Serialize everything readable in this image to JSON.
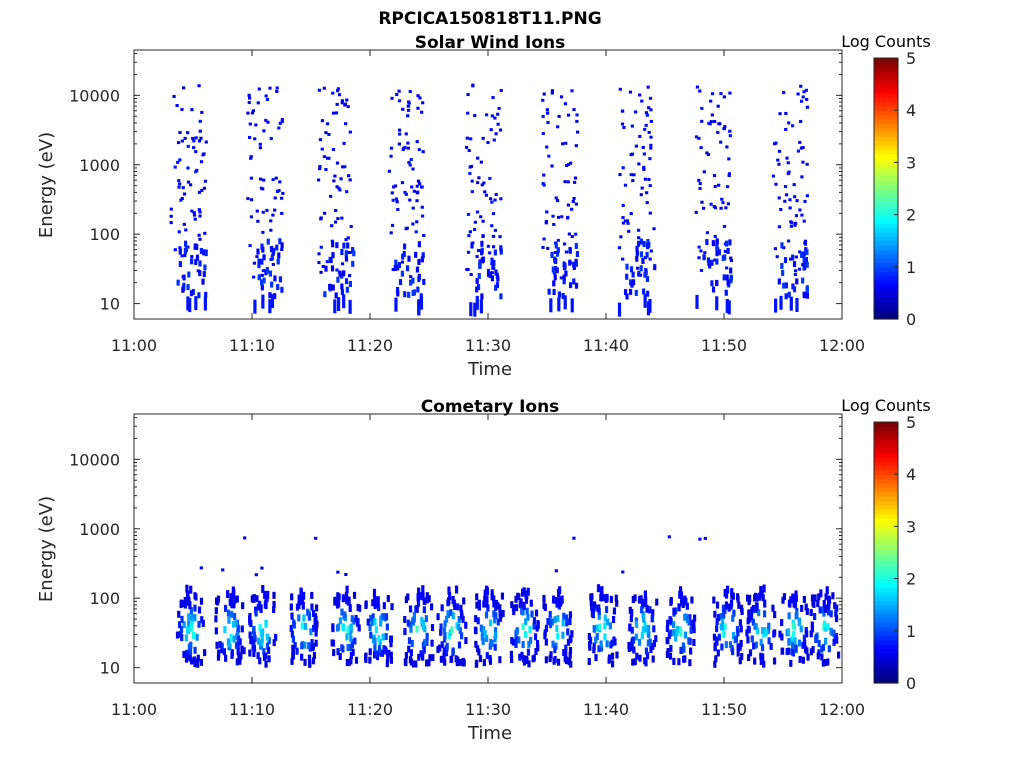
{
  "figure": {
    "title": "RPCICA150818T11.PNG"
  },
  "colors": {
    "colormap": [
      "#00007f",
      "#0000ff",
      "#007fff",
      "#00ffff",
      "#7fff7f",
      "#ffff00",
      "#ff7f00",
      "#ff0000",
      "#7f0000"
    ],
    "axis": "#262626"
  },
  "chart_data": [
    {
      "type": "heatmap",
      "title": "Solar Wind Ions",
      "xlabel": "Time",
      "ylabel": "Energy (eV)",
      "x_ticks": [
        "11:00",
        "11:10",
        "11:20",
        "11:30",
        "11:40",
        "11:50",
        "12:00"
      ],
      "x_range_minutes": [
        0,
        60
      ],
      "y_ticks": [
        "10",
        "100",
        "1000",
        "10000"
      ],
      "y_scale": "log",
      "y_range": [
        6,
        45000
      ],
      "colorbar": {
        "label": "Log Counts",
        "range": [
          0,
          5
        ],
        "ticks": [
          "0",
          "1",
          "2",
          "3",
          "4",
          "5"
        ]
      },
      "sweeps_start_minutes": [
        3.0,
        9.5,
        15.5,
        21.5,
        28.0,
        34.5,
        41.0,
        47.5,
        54.0
      ],
      "sweep_duration_minutes": 3.0,
      "dominant_level": 0.6,
      "max_level": 0.9,
      "description_of_cells": "sparse low-count points spanning 10 to 14000 eV in each sweep, denser below 100 eV"
    },
    {
      "type": "heatmap",
      "title": "Cometary Ions",
      "xlabel": "Time",
      "ylabel": "Energy (eV)",
      "x_ticks": [
        "11:00",
        "11:10",
        "11:20",
        "11:30",
        "11:40",
        "11:50",
        "12:00"
      ],
      "x_range_minutes": [
        0,
        60
      ],
      "y_ticks": [
        "10",
        "100",
        "1000",
        "10000"
      ],
      "y_scale": "log",
      "y_range": [
        6,
        45000
      ],
      "colorbar": {
        "label": "Log Counts",
        "range": [
          0,
          5
        ],
        "ticks": [
          "0",
          "1",
          "2",
          "3",
          "4",
          "5"
        ]
      },
      "bursts_center_minutes": [
        4.7,
        8.0,
        10.8,
        14.2,
        17.8,
        20.6,
        24.0,
        26.8,
        30.0,
        33.0,
        35.8,
        39.6,
        43.0,
        46.2,
        50.2,
        53.0,
        55.8,
        58.4
      ],
      "energy_band": [
        10,
        150
      ],
      "peak_energy": 35,
      "max_level": 2.3
    }
  ]
}
